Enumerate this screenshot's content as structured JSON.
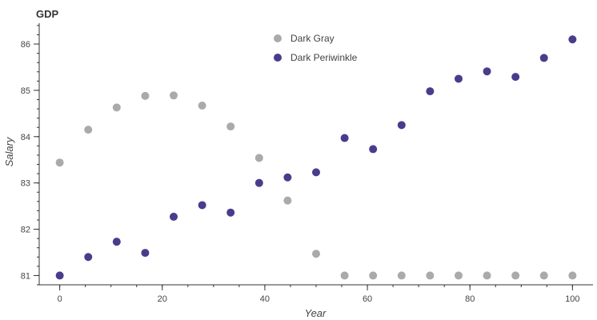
{
  "chart_data": {
    "type": "scatter",
    "title": "GDP",
    "xlabel": "Year",
    "ylabel": "Salary",
    "xlim": [
      -4,
      104
    ],
    "ylim": [
      80.8,
      86.45
    ],
    "xticks": [
      0,
      20,
      40,
      60,
      80,
      100
    ],
    "yticks": [
      81,
      82,
      83,
      84,
      85,
      86
    ],
    "x_minor_step": 5,
    "y_minor_step": 0.2,
    "grid": false,
    "legend_position": "top-center",
    "series": [
      {
        "name": "Dark Gray",
        "color": "#aaaaaa",
        "x": [
          0,
          5.56,
          11.11,
          16.67,
          22.22,
          27.78,
          33.33,
          38.89,
          44.44,
          50,
          55.56,
          61.11,
          66.67,
          72.22,
          77.78,
          83.33,
          88.89,
          94.44,
          100
        ],
        "y": [
          83.44,
          84.15,
          84.63,
          84.88,
          84.89,
          84.67,
          84.22,
          83.54,
          82.62,
          81.47,
          81.0,
          81.0,
          81.0,
          81.0,
          81.0,
          81.0,
          81.0,
          81.0,
          81.0
        ]
      },
      {
        "name": "Dark Periwinkle",
        "color": "#4a3c8c",
        "x": [
          0,
          5.56,
          11.11,
          16.67,
          22.22,
          27.78,
          33.33,
          38.89,
          44.44,
          50,
          55.56,
          61.11,
          66.67,
          72.22,
          77.78,
          83.33,
          88.89,
          94.44,
          100
        ],
        "y": [
          81.0,
          81.4,
          81.73,
          81.49,
          82.27,
          82.52,
          82.36,
          83.0,
          83.12,
          83.23,
          83.97,
          83.73,
          84.25,
          84.98,
          85.25,
          85.41,
          85.29,
          85.7,
          86.1
        ]
      }
    ]
  }
}
